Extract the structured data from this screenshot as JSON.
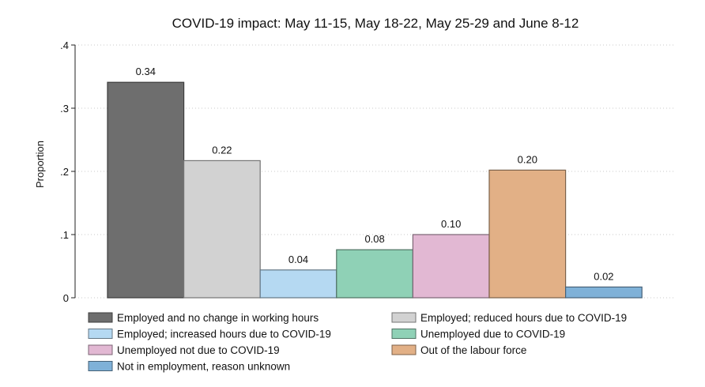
{
  "chart_data": {
    "type": "bar",
    "title": "COVID-19 impact: May 11-15, May 18-22, May 25-29 and June 8-12",
    "xlabel": "",
    "ylabel": "Proportion",
    "ylim": [
      0,
      0.4
    ],
    "yticks": [
      {
        "value": 0,
        "label": "0"
      },
      {
        "value": 0.1,
        "label": ".1"
      },
      {
        "value": 0.2,
        "label": ".2"
      },
      {
        "value": 0.3,
        "label": ".3"
      },
      {
        "value": 0.4,
        "label": ".4"
      }
    ],
    "grid": true,
    "legend_position": "bottom",
    "series": [
      {
        "name": "Employed and no change in working hours",
        "value": 0.341,
        "label": "0.34",
        "color": "#6e6e6e"
      },
      {
        "name": "Employed; reduced hours due to COVID-19",
        "value": 0.217,
        "label": "0.22",
        "color": "#d2d2d2"
      },
      {
        "name": "Employed; increased hours due to COVID-19",
        "value": 0.044,
        "label": "0.04",
        "color": "#b5d9f2"
      },
      {
        "name": "Unemployed due to COVID-19",
        "value": 0.076,
        "label": "0.08",
        "color": "#8fd1b6"
      },
      {
        "name": "Unemployed not due to COVID-19",
        "value": 0.1,
        "label": "0.10",
        "color": "#e2b8d3"
      },
      {
        "name": "Out of the labour force",
        "value": 0.202,
        "label": "0.20",
        "color": "#e2b086"
      },
      {
        "name": "Not in employment, reason unknown",
        "value": 0.017,
        "label": "0.02",
        "color": "#7fb1d8"
      }
    ]
  }
}
